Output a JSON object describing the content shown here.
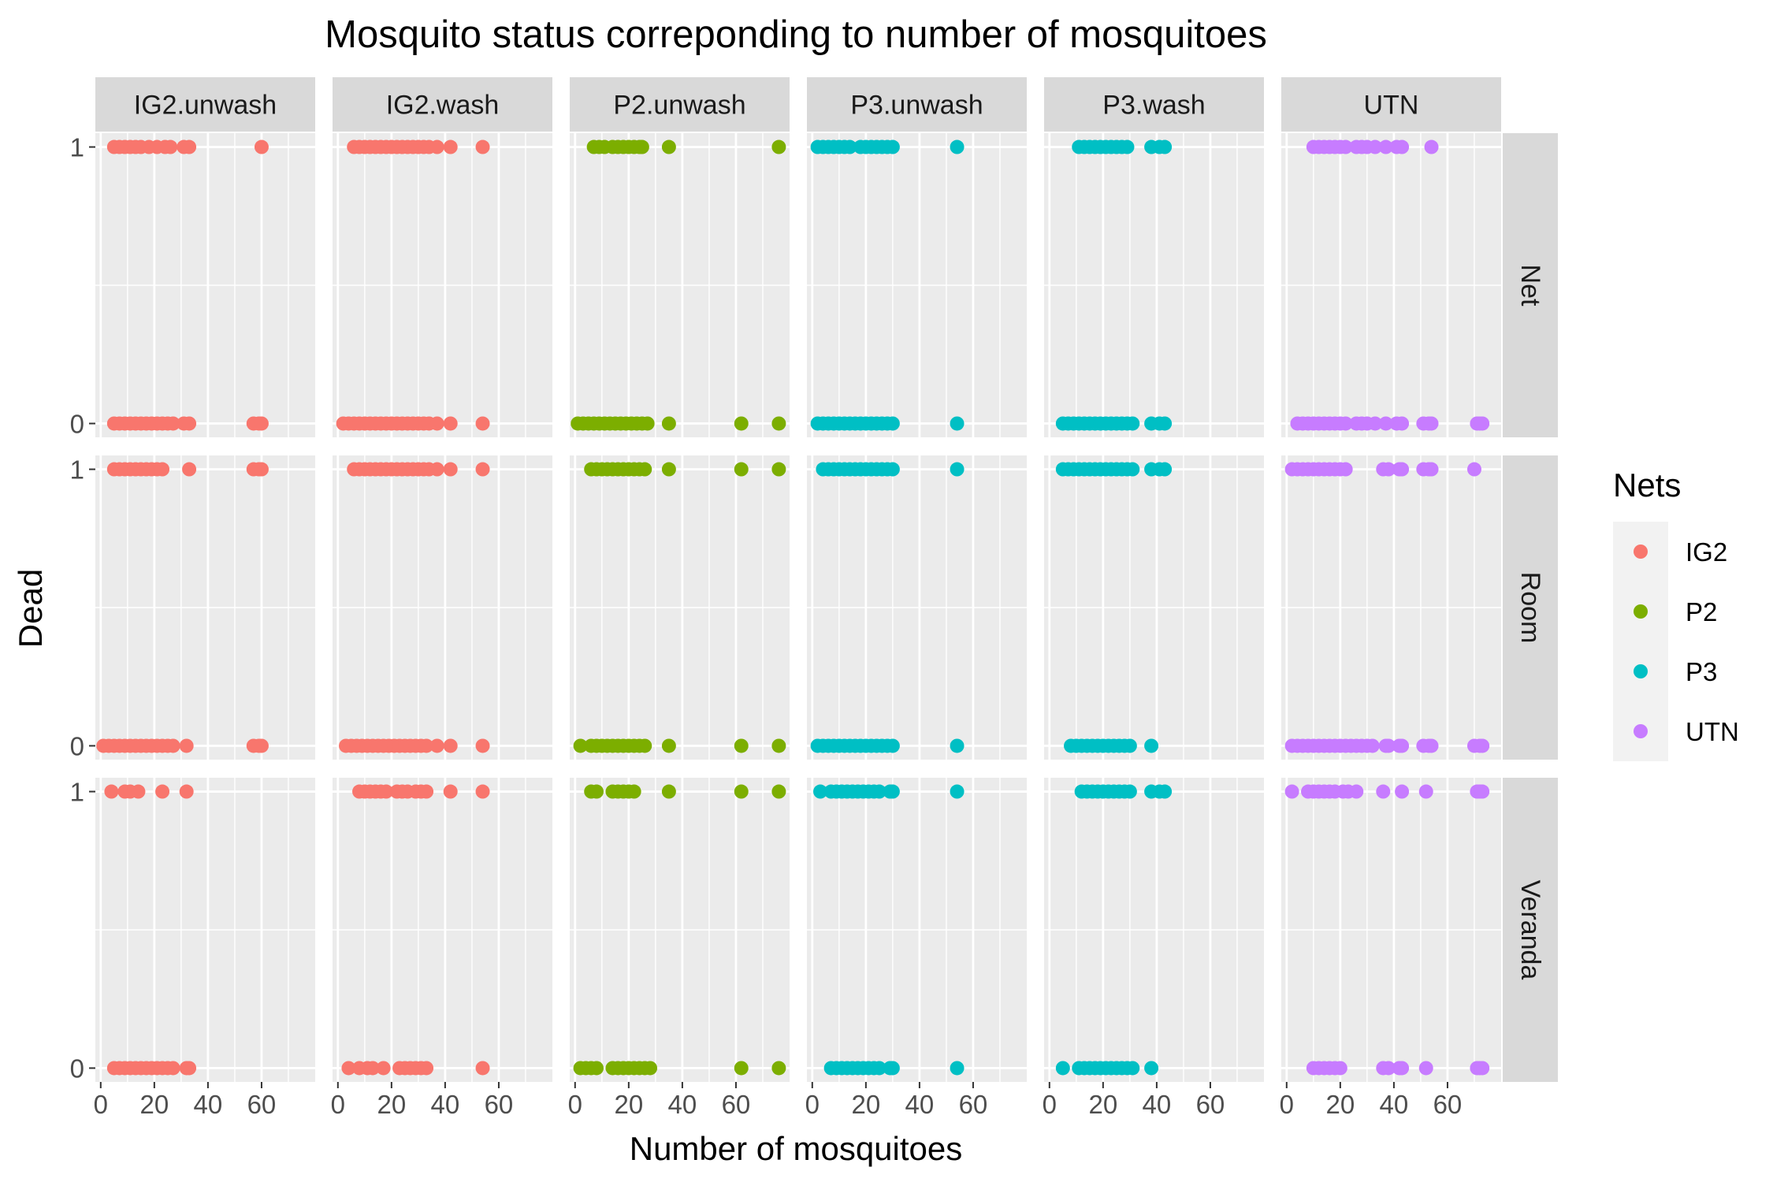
{
  "chart_data": {
    "type": "scatter",
    "title": "Mosquito status correponding to number of mosquitoes",
    "xlabel": "Number of mosquitoes",
    "ylabel": "Dead",
    "xlim": [
      0,
      80
    ],
    "ylim": [
      0,
      1
    ],
    "x_ticks": [
      "0",
      "20",
      "40",
      "60"
    ],
    "y_ticks": [
      "0",
      "1"
    ],
    "grid": true,
    "facet_columns": [
      "IG2.unwash",
      "IG2.wash",
      "P2.unwash",
      "P3.unwash",
      "P3.wash",
      "UTN"
    ],
    "facet_rows": [
      "Net",
      "Room",
      "Veranda"
    ],
    "legend": {
      "title": "Nets",
      "position": "right",
      "items": [
        {
          "label": "IG2",
          "color": "#F8766D"
        },
        {
          "label": "P2",
          "color": "#7CAE00"
        },
        {
          "label": "P3",
          "color": "#00BFC4"
        },
        {
          "label": "UTN",
          "color": "#C77CFF"
        }
      ]
    },
    "series_color": {
      "IG2.unwash": "#F8766D",
      "IG2.wash": "#F8766D",
      "P2.unwash": "#7CAE00",
      "P3.unwash": "#00BFC4",
      "P3.wash": "#00BFC4",
      "UTN": "#C77CFF"
    },
    "panels": [
      {
        "col": "IG2.unwash",
        "row": "Net",
        "dead": [
          5,
          7,
          9,
          11,
          13,
          15,
          18,
          21,
          24,
          26,
          31,
          33,
          60
        ],
        "alive": [
          5,
          7,
          9,
          11,
          13,
          15,
          17,
          19,
          21,
          23,
          25,
          27,
          31,
          33,
          57,
          59,
          60
        ]
      },
      {
        "col": "IG2.unwash",
        "row": "Room",
        "dead": [
          5,
          7,
          9,
          11,
          13,
          15,
          17,
          19,
          21,
          23,
          33,
          57,
          59,
          60
        ],
        "alive": [
          1,
          3,
          5,
          7,
          9,
          11,
          13,
          15,
          17,
          19,
          21,
          23,
          25,
          27,
          32,
          57,
          59,
          60
        ]
      },
      {
        "col": "IG2.unwash",
        "row": "Veranda",
        "dead": [
          4,
          9,
          11,
          14,
          23,
          32
        ],
        "alive": [
          5,
          7,
          9,
          11,
          13,
          15,
          17,
          19,
          21,
          23,
          25,
          27,
          32,
          33
        ]
      },
      {
        "col": "IG2.wash",
        "row": "Net",
        "dead": [
          6,
          8,
          10,
          12,
          14,
          16,
          18,
          20,
          22,
          24,
          26,
          28,
          30,
          32,
          34,
          37,
          42,
          54
        ],
        "alive": [
          2,
          4,
          6,
          8,
          10,
          12,
          14,
          16,
          18,
          20,
          22,
          24,
          26,
          28,
          30,
          32,
          34,
          37,
          42,
          54
        ]
      },
      {
        "col": "IG2.wash",
        "row": "Room",
        "dead": [
          6,
          8,
          10,
          12,
          14,
          16,
          18,
          20,
          22,
          24,
          26,
          28,
          30,
          32,
          34,
          37,
          42,
          54
        ],
        "alive": [
          3,
          5,
          7,
          9,
          11,
          13,
          15,
          17,
          19,
          21,
          23,
          25,
          27,
          29,
          31,
          33,
          37,
          42,
          54
        ]
      },
      {
        "col": "IG2.wash",
        "row": "Veranda",
        "dead": [
          8,
          10,
          12,
          14,
          16,
          18,
          22,
          24,
          26,
          29,
          31,
          33,
          42,
          54
        ],
        "alive": [
          4,
          8,
          11,
          13,
          17,
          23,
          25,
          27,
          29,
          31,
          33,
          54
        ]
      },
      {
        "col": "P2.unwash",
        "row": "Net",
        "dead": [
          7,
          9,
          11,
          14,
          16,
          18,
          20,
          22,
          24,
          25,
          35,
          76
        ],
        "alive": [
          1,
          3,
          5,
          7,
          9,
          11,
          13,
          15,
          17,
          19,
          21,
          23,
          25,
          27,
          35,
          62,
          76
        ]
      },
      {
        "col": "P2.unwash",
        "row": "Room",
        "dead": [
          6,
          8,
          10,
          12,
          14,
          16,
          18,
          20,
          22,
          24,
          26,
          35,
          62,
          76
        ],
        "alive": [
          2,
          6,
          8,
          10,
          12,
          14,
          16,
          18,
          20,
          22,
          24,
          26,
          35,
          62,
          76
        ]
      },
      {
        "col": "P2.unwash",
        "row": "Veranda",
        "dead": [
          6,
          8,
          14,
          16,
          18,
          20,
          22,
          35,
          62,
          76
        ],
        "alive": [
          2,
          4,
          6,
          8,
          14,
          16,
          18,
          20,
          22,
          24,
          26,
          28,
          62,
          76
        ]
      },
      {
        "col": "P3.unwash",
        "row": "Net",
        "dead": [
          2,
          4,
          6,
          8,
          10,
          12,
          14,
          18,
          20,
          22,
          24,
          26,
          28,
          30,
          54
        ],
        "alive": [
          2,
          4,
          6,
          8,
          10,
          12,
          14,
          16,
          18,
          20,
          22,
          24,
          26,
          28,
          30,
          54
        ]
      },
      {
        "col": "P3.unwash",
        "row": "Room",
        "dead": [
          4,
          6,
          8,
          10,
          12,
          14,
          16,
          18,
          20,
          22,
          24,
          26,
          28,
          30,
          54
        ],
        "alive": [
          2,
          4,
          6,
          8,
          10,
          12,
          14,
          16,
          18,
          20,
          22,
          24,
          26,
          28,
          30,
          54
        ]
      },
      {
        "col": "P3.unwash",
        "row": "Veranda",
        "dead": [
          3,
          7,
          9,
          11,
          13,
          15,
          17,
          19,
          21,
          23,
          25,
          29,
          30,
          54
        ],
        "alive": [
          7,
          9,
          11,
          13,
          15,
          17,
          19,
          21,
          23,
          25,
          29,
          30,
          54
        ]
      },
      {
        "col": "P3.wash",
        "row": "Net",
        "dead": [
          11,
          13,
          15,
          17,
          19,
          21,
          23,
          25,
          27,
          29,
          38,
          41,
          43
        ],
        "alive": [
          5,
          7,
          9,
          11,
          13,
          15,
          17,
          19,
          21,
          23,
          25,
          27,
          29,
          31,
          38,
          41,
          43
        ]
      },
      {
        "col": "P3.wash",
        "row": "Room",
        "dead": [
          5,
          7,
          9,
          11,
          13,
          15,
          17,
          19,
          21,
          23,
          25,
          27,
          29,
          31,
          38,
          41,
          43
        ],
        "alive": [
          8,
          10,
          12,
          14,
          16,
          18,
          20,
          22,
          24,
          26,
          28,
          30,
          38
        ]
      },
      {
        "col": "P3.wash",
        "row": "Veranda",
        "dead": [
          12,
          14,
          16,
          18,
          20,
          22,
          24,
          26,
          28,
          30,
          38,
          41,
          43
        ],
        "alive": [
          5,
          11,
          13,
          15,
          17,
          19,
          21,
          23,
          25,
          27,
          29,
          31,
          38
        ]
      },
      {
        "col": "UTN",
        "row": "Net",
        "dead": [
          10,
          12,
          14,
          16,
          18,
          20,
          22,
          26,
          28,
          30,
          33,
          37,
          41,
          43,
          54
        ],
        "alive": [
          4,
          6,
          8,
          10,
          12,
          14,
          16,
          18,
          20,
          22,
          26,
          28,
          30,
          33,
          37,
          41,
          43,
          51,
          53,
          54,
          71,
          72,
          73
        ]
      },
      {
        "col": "UTN",
        "row": "Room",
        "dead": [
          2,
          4,
          6,
          8,
          10,
          12,
          14,
          16,
          18,
          20,
          22,
          36,
          38,
          42,
          43,
          51,
          53,
          54,
          70
        ],
        "alive": [
          2,
          4,
          6,
          8,
          10,
          12,
          14,
          16,
          18,
          20,
          22,
          24,
          26,
          28,
          30,
          32,
          37,
          38,
          42,
          43,
          51,
          53,
          54,
          70,
          72,
          73
        ]
      },
      {
        "col": "UTN",
        "row": "Veranda",
        "dead": [
          2,
          8,
          10,
          12,
          14,
          16,
          18,
          21,
          23,
          26,
          36,
          43,
          52,
          71,
          72,
          73
        ],
        "alive": [
          10,
          12,
          14,
          16,
          18,
          20,
          36,
          38,
          42,
          43,
          52,
          71,
          72,
          73
        ]
      }
    ]
  }
}
